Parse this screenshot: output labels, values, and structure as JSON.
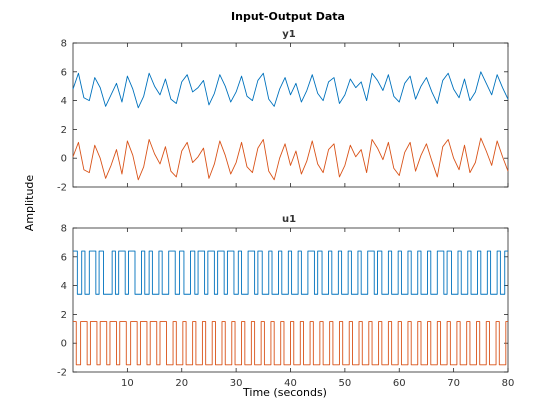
{
  "figure": {
    "title": "Input-Output Data",
    "ylabel": "Amplitude",
    "xlabel": "Time (seconds)"
  },
  "colors": {
    "series_blue": "#0072BD",
    "series_orange": "#D95319",
    "axes": "#262626"
  },
  "chart_data": [
    {
      "type": "line",
      "title": "y1",
      "xlabel": "Time (seconds)",
      "ylabel": "Amplitude",
      "xlim": [
        0,
        80
      ],
      "ylim": [
        -2,
        8
      ],
      "xticks": [
        10,
        20,
        30,
        40,
        50,
        60,
        70,
        80
      ],
      "yticks": [
        -2,
        0,
        2,
        4,
        6,
        8
      ],
      "grid": false,
      "series": [
        {
          "color": "#0072BD",
          "x": [
            0,
            1,
            2,
            3,
            4,
            5,
            6,
            7,
            8,
            9,
            10,
            11,
            12,
            13,
            14,
            15,
            16,
            17,
            18,
            19,
            20,
            21,
            22,
            23,
            24,
            25,
            26,
            27,
            28,
            29,
            30,
            31,
            32,
            33,
            34,
            35,
            36,
            37,
            38,
            39,
            40,
            41,
            42,
            43,
            44,
            45,
            46,
            47,
            48,
            49,
            50,
            51,
            52,
            53,
            54,
            55,
            56,
            57,
            58,
            59,
            60,
            61,
            62,
            63,
            64,
            65,
            66,
            67,
            68,
            69,
            70,
            71,
            72,
            73,
            74,
            75,
            76,
            77,
            78,
            79,
            80
          ],
          "y": [
            4.8,
            5.9,
            4.2,
            4.0,
            5.6,
            4.9,
            3.6,
            4.4,
            5.2,
            3.9,
            5.7,
            4.8,
            3.5,
            4.3,
            5.9,
            5.0,
            4.4,
            5.5,
            4.1,
            3.8,
            5.3,
            5.8,
            4.6,
            4.9,
            5.4,
            3.7,
            4.5,
            5.8,
            5.0,
            3.9,
            4.6,
            5.7,
            4.3,
            4.0,
            5.4,
            5.9,
            4.1,
            3.6,
            4.8,
            5.6,
            4.4,
            5.2,
            3.9,
            4.7,
            5.8,
            4.5,
            4.0,
            5.3,
            5.6,
            3.8,
            4.4,
            5.5,
            4.9,
            5.3,
            4.0,
            5.9,
            5.4,
            4.7,
            5.8,
            4.3,
            3.9,
            5.2,
            5.7,
            4.1,
            5.0,
            5.6,
            4.6,
            3.8,
            5.4,
            5.9,
            4.8,
            4.2,
            5.5,
            4.0,
            4.6,
            6.0,
            5.2,
            4.4,
            5.8,
            4.9,
            4.1
          ]
        },
        {
          "color": "#D95319",
          "x": [
            0,
            1,
            2,
            3,
            4,
            5,
            6,
            7,
            8,
            9,
            10,
            11,
            12,
            13,
            14,
            15,
            16,
            17,
            18,
            19,
            20,
            21,
            22,
            23,
            24,
            25,
            26,
            27,
            28,
            29,
            30,
            31,
            32,
            33,
            34,
            35,
            36,
            37,
            38,
            39,
            40,
            41,
            42,
            43,
            44,
            45,
            46,
            47,
            48,
            49,
            50,
            51,
            52,
            53,
            54,
            55,
            56,
            57,
            58,
            59,
            60,
            61,
            62,
            63,
            64,
            65,
            66,
            67,
            68,
            69,
            70,
            71,
            72,
            73,
            74,
            75,
            76,
            77,
            78,
            79,
            80
          ],
          "y": [
            0.1,
            1.1,
            -0.8,
            -1.0,
            0.9,
            0.0,
            -1.4,
            -0.5,
            0.6,
            -1.1,
            1.2,
            0.2,
            -1.5,
            -0.6,
            1.3,
            0.3,
            -0.4,
            0.8,
            -0.9,
            -1.3,
            0.5,
            1.1,
            -0.3,
            0.1,
            0.7,
            -1.4,
            -0.4,
            1.2,
            0.2,
            -1.1,
            -0.3,
            1.1,
            -0.6,
            -1.0,
            0.7,
            1.3,
            -0.9,
            -1.5,
            0.0,
            1.0,
            -0.5,
            0.5,
            -1.1,
            -0.2,
            1.2,
            -0.4,
            -1.0,
            0.6,
            1.0,
            -1.3,
            -0.5,
            0.9,
            0.1,
            0.6,
            -1.0,
            1.3,
            0.7,
            -0.1,
            1.1,
            -0.7,
            -1.2,
            0.4,
            1.1,
            -0.9,
            0.2,
            1.0,
            -0.2,
            -1.3,
            0.8,
            1.3,
            0.0,
            -0.8,
            0.9,
            -1.0,
            -0.3,
            1.4,
            0.5,
            -0.5,
            1.2,
            0.1,
            -0.9
          ]
        }
      ]
    },
    {
      "type": "line",
      "title": "u1",
      "xlabel": "Time (seconds)",
      "ylabel": "Amplitude",
      "xlim": [
        0,
        80
      ],
      "ylim": [
        -2,
        8
      ],
      "xticks": [
        10,
        20,
        30,
        40,
        50,
        60,
        70,
        80
      ],
      "yticks": [
        -2,
        0,
        2,
        4,
        6,
        8
      ],
      "grid": false,
      "step": true,
      "series": [
        {
          "color": "#0072BD",
          "low": 3.4,
          "high": 6.4,
          "switch_times": [
            0.8,
            1.6,
            2.2,
            3.0,
            4.2,
            4.8,
            5.6,
            7.2,
            7.8,
            8.4,
            9.6,
            10.2,
            11.4,
            12.6,
            13.2,
            14.0,
            14.6,
            15.8,
            16.4,
            17.6,
            18.8,
            19.6,
            20.4,
            21.6,
            22.4,
            23.0,
            24.2,
            24.8,
            26.0,
            26.6,
            27.8,
            28.4,
            29.6,
            30.4,
            31.0,
            32.2,
            33.4,
            34.0,
            34.8,
            36.0,
            36.6,
            37.8,
            38.4,
            39.6,
            40.2,
            41.4,
            42.0,
            43.2,
            44.4,
            45.0,
            45.8,
            47.0,
            47.6,
            48.8,
            49.4,
            50.6,
            51.2,
            52.4,
            53.0,
            54.2,
            55.4,
            56.0,
            56.8,
            58.0,
            58.6,
            59.8,
            60.4,
            61.6,
            62.2,
            63.4,
            64.0,
            65.2,
            65.8,
            67.0,
            68.2,
            68.8,
            69.6,
            70.8,
            71.4,
            72.6,
            73.2,
            74.4,
            75.0,
            76.2,
            76.8,
            78.0,
            78.6,
            79.4
          ],
          "initial": "high"
        },
        {
          "color": "#D95319",
          "low": -1.5,
          "high": 1.5,
          "switch_times": [
            0.6,
            1.4,
            2.6,
            3.2,
            4.4,
            5.0,
            6.2,
            6.8,
            8.0,
            8.6,
            9.8,
            10.6,
            11.8,
            12.4,
            13.6,
            14.2,
            15.4,
            16.0,
            17.2,
            18.4,
            19.0,
            20.2,
            20.8,
            22.0,
            22.6,
            23.8,
            24.4,
            25.6,
            26.2,
            27.4,
            28.0,
            29.2,
            29.8,
            31.0,
            31.6,
            32.8,
            33.4,
            34.6,
            35.2,
            36.4,
            37.0,
            38.2,
            38.8,
            40.0,
            40.6,
            41.8,
            42.4,
            43.6,
            44.2,
            45.4,
            46.0,
            47.2,
            47.8,
            49.0,
            49.6,
            50.8,
            51.4,
            52.6,
            53.2,
            54.4,
            55.0,
            56.2,
            56.8,
            58.0,
            58.6,
            59.8,
            60.4,
            61.6,
            62.2,
            63.4,
            64.0,
            65.2,
            65.8,
            67.0,
            67.6,
            68.8,
            69.4,
            70.6,
            71.2,
            72.4,
            73.0,
            74.2,
            74.8,
            76.0,
            76.6,
            77.8,
            78.4,
            79.6
          ],
          "initial": "high"
        }
      ]
    }
  ]
}
